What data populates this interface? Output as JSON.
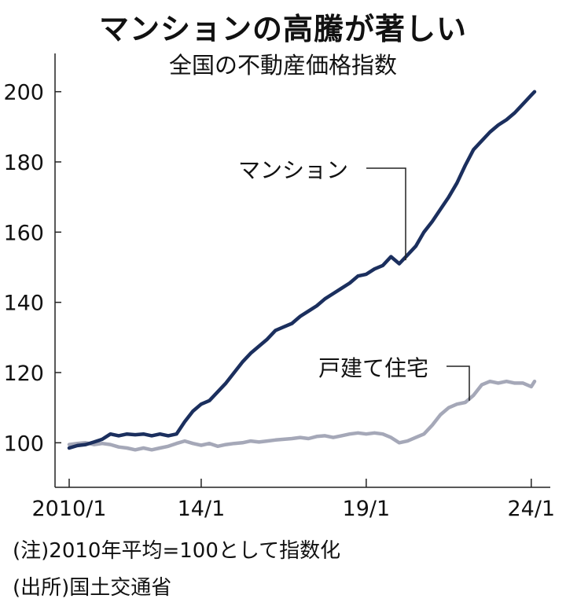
{
  "title": "マンションの高騰が著しい",
  "subtitle": "全国の不動産価格指数",
  "notes": {
    "note": "(注)2010年平均=100として指数化",
    "source": "(出所)国土交通省"
  },
  "chart_data": {
    "type": "line",
    "title": "マンションの高騰が著しい",
    "subtitle": "全国の不動産価格指数",
    "xlabel": "",
    "ylabel": "",
    "xlim": [
      2010.0,
      2024.1
    ],
    "ylim": [
      90,
      210
    ],
    "x_ticks": [
      {
        "x": 2010.0,
        "label": "2010/1"
      },
      {
        "x": 2014.0,
        "label": "14/1"
      },
      {
        "x": 2019.0,
        "label": "19/1"
      },
      {
        "x": 2024.0,
        "label": "24/1"
      }
    ],
    "y_ticks": [
      100,
      120,
      140,
      160,
      180,
      200
    ],
    "grid": false,
    "colors": {
      "condo": "#1b2f5e",
      "house": "#a5a8b8",
      "axis": "#222222",
      "text": "#111111"
    },
    "series": [
      {
        "name": "マンション",
        "color": "#1b2f5e",
        "x": [
          2010.0,
          2010.25,
          2010.5,
          2010.75,
          2011.0,
          2011.25,
          2011.5,
          2011.75,
          2012.0,
          2012.25,
          2012.5,
          2012.75,
          2013.0,
          2013.25,
          2013.5,
          2013.75,
          2014.0,
          2014.25,
          2014.5,
          2014.75,
          2015.0,
          2015.25,
          2015.5,
          2015.75,
          2016.0,
          2016.25,
          2016.5,
          2016.75,
          2017.0,
          2017.25,
          2017.5,
          2017.75,
          2018.0,
          2018.25,
          2018.5,
          2018.75,
          2019.0,
          2019.25,
          2019.5,
          2019.75,
          2020.0,
          2020.25,
          2020.5,
          2020.75,
          2021.0,
          2021.25,
          2021.5,
          2021.75,
          2022.0,
          2022.25,
          2022.5,
          2022.75,
          2023.0,
          2023.25,
          2023.5,
          2023.75,
          2024.0,
          2024.1
        ],
        "values": [
          98.5,
          99.2,
          99.5,
          100.2,
          101.0,
          102.5,
          102.0,
          102.5,
          102.3,
          102.5,
          102.0,
          102.5,
          102.0,
          102.5,
          106.0,
          109.0,
          111.0,
          112.0,
          114.5,
          117.0,
          120.0,
          123.0,
          125.5,
          127.5,
          129.5,
          132.0,
          133.0,
          134.0,
          136.0,
          137.5,
          139.0,
          141.0,
          142.5,
          144.0,
          145.5,
          147.5,
          148.0,
          149.5,
          150.5,
          153.0,
          151.0,
          153.5,
          156.0,
          160.0,
          163.0,
          166.5,
          170.0,
          174.0,
          179.0,
          183.5,
          186.0,
          188.5,
          190.5,
          192.0,
          194.0,
          196.5,
          199.0,
          200.0
        ]
      },
      {
        "name": "戸建て住宅",
        "color": "#a5a8b8",
        "x": [
          2010.0,
          2010.25,
          2010.5,
          2010.75,
          2011.0,
          2011.25,
          2011.5,
          2011.75,
          2012.0,
          2012.25,
          2012.5,
          2012.75,
          2013.0,
          2013.25,
          2013.5,
          2013.75,
          2014.0,
          2014.25,
          2014.5,
          2014.75,
          2015.0,
          2015.25,
          2015.5,
          2015.75,
          2016.0,
          2016.25,
          2016.5,
          2016.75,
          2017.0,
          2017.25,
          2017.5,
          2017.75,
          2018.0,
          2018.25,
          2018.5,
          2018.75,
          2019.0,
          2019.25,
          2019.5,
          2019.75,
          2020.0,
          2020.25,
          2020.5,
          2020.75,
          2021.0,
          2021.25,
          2021.5,
          2021.75,
          2022.0,
          2022.25,
          2022.5,
          2022.75,
          2023.0,
          2023.25,
          2023.5,
          2023.75,
          2024.0,
          2024.1
        ],
        "values": [
          99.5,
          99.8,
          100.0,
          99.5,
          99.8,
          99.5,
          98.8,
          98.5,
          98.0,
          98.5,
          98.0,
          98.5,
          99.0,
          99.8,
          100.5,
          99.8,
          99.3,
          99.8,
          99.0,
          99.5,
          99.8,
          100.0,
          100.5,
          100.2,
          100.5,
          100.8,
          101.0,
          101.2,
          101.5,
          101.2,
          101.8,
          102.0,
          101.5,
          102.0,
          102.5,
          102.8,
          102.5,
          102.8,
          102.5,
          101.5,
          100.0,
          100.5,
          101.5,
          102.5,
          105.0,
          108.0,
          110.0,
          111.0,
          111.5,
          113.5,
          116.5,
          117.5,
          117.0,
          117.5,
          117.0,
          117.0,
          116.0,
          117.5
        ]
      }
    ]
  }
}
